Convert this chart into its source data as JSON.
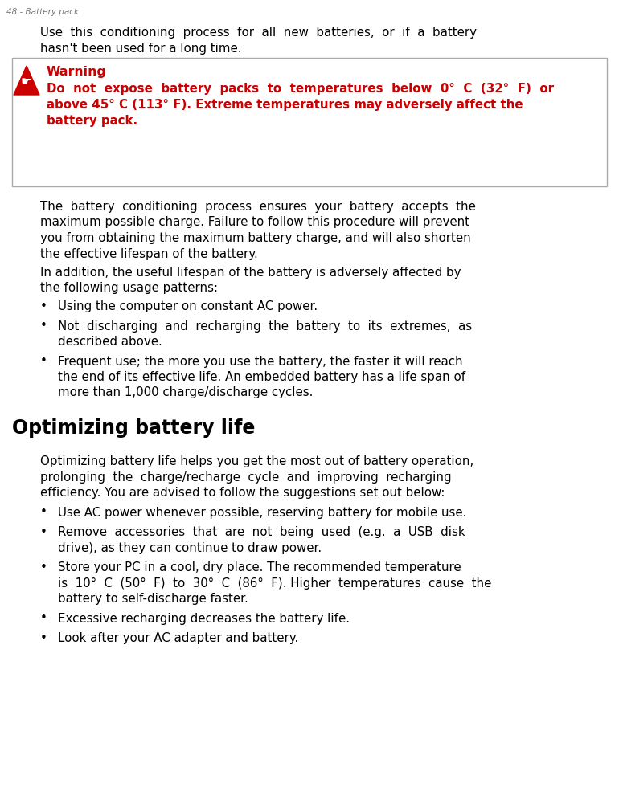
{
  "page_header": "48 - Battery pack",
  "bg_color": "#ffffff",
  "text_color": "#000000",
  "red_color": "#cc0000",
  "header_color": "#777777",
  "intro_line1": "Use  this  conditioning  process  for  all  new  batteries,  or  if  a  battery",
  "intro_line2": "hasn't been used for a long time.",
  "warning_title": "Warning",
  "warning_line1": "Do  not  expose  battery  packs  to  temperatures  below  0°  C  (32°  F)  or",
  "warning_line2": "above 45° C (113° F). Extreme temperatures may adversely affect the",
  "warning_line3": "battery pack.",
  "body_line1": "The  battery  conditioning  process  ensures  your  battery  accepts  the",
  "body_line2": "maximum possible charge. Failure to follow this procedure will prevent",
  "body_line3": "you from obtaining the maximum battery charge, and will also shorten",
  "body_line4": "the effective lifespan of the battery.",
  "para2_line1": "In addition, the useful lifespan of the battery is adversely affected by",
  "para2_line2": "the following usage patterns:",
  "b1_line1": "Using the computer on constant AC power.",
  "b2_line1": "Not  discharging  and  recharging  the  battery  to  its  extremes,  as",
  "b2_line2": "described above.",
  "b3_line1": "Frequent use; the more you use the battery, the faster it will reach",
  "b3_line2": "the end of its effective life. An embedded battery has a life span of",
  "b3_line3": "more than 1,000 charge/discharge cycles.",
  "section_title": "Optimizing battery life",
  "sp1_line1": "Optimizing battery life helps you get the most out of battery operation,",
  "sp1_line2": "prolonging  the  charge/recharge  cycle  and  improving  recharging",
  "sp1_line3": "efficiency. You are advised to follow the suggestions set out below:",
  "sb1_line1": "Use AC power whenever possible, reserving battery for mobile use.",
  "sb2_line1": "Remove  accessories  that  are  not  being  used  (e.g.  a  USB  disk",
  "sb2_line2": "drive), as they can continue to draw power.",
  "sb3_line1": "Store your PC in a cool, dry place. The recommended temperature",
  "sb3_line2": "is  10°  C  (50°  F)  to  30°  C  (86°  F). Higher  temperatures  cause  the",
  "sb3_line3": "battery to self-discharge faster.",
  "sb4_line1": "Excessive recharging decreases the battery life.",
  "sb5_line1": "Look after your AC adapter and battery."
}
